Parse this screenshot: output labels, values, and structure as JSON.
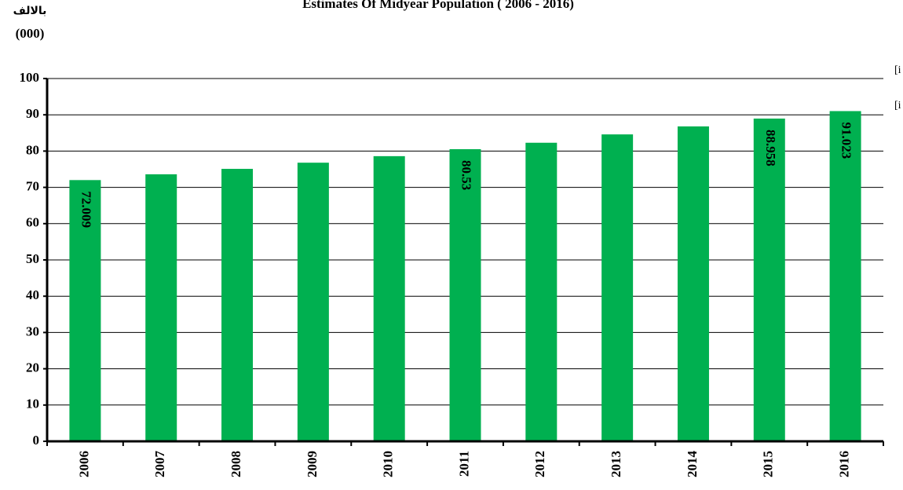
{
  "chart_data": {
    "type": "bar",
    "title": "Estimates Of Midyear Population ( 2006 - 2016)",
    "y_label": [
      "بالالف",
      "(000)"
    ],
    "annotations": [
      "[i",
      "[i"
    ],
    "categories": [
      "2006",
      "2007",
      "2008",
      "2009",
      "2010",
      "2011",
      "2012",
      "2013",
      "2014",
      "2015",
      "2016"
    ],
    "values": [
      72.009,
      73.6,
      75.1,
      76.8,
      78.6,
      80.53,
      82.3,
      84.6,
      86.8,
      88.958,
      91.023
    ],
    "value_labels": [
      "72.009",
      null,
      null,
      null,
      null,
      "80.53",
      null,
      null,
      null,
      "88.958",
      "91.023"
    ],
    "color": "#00b050",
    "ylim": [
      0,
      100
    ],
    "yticks": [
      0,
      10,
      20,
      30,
      40,
      50,
      60,
      70,
      80,
      90,
      100
    ],
    "grid": true
  }
}
